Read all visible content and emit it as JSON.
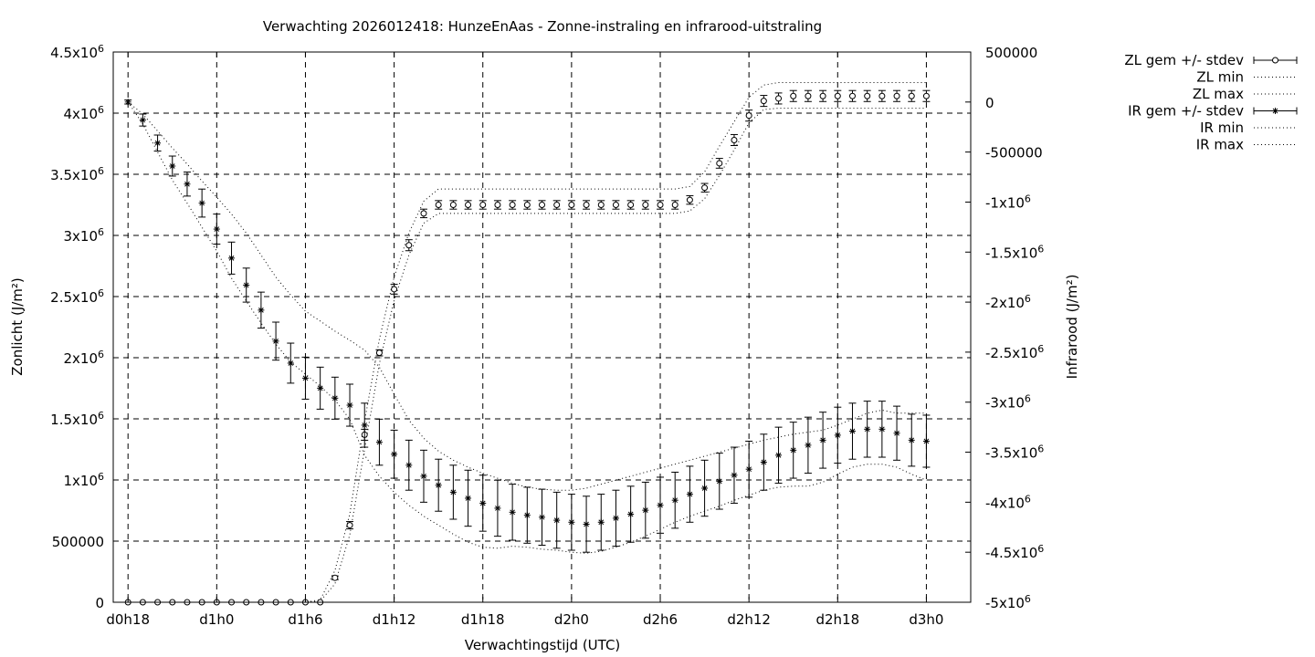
{
  "chart_data": {
    "type": "line",
    "title": "Verwachting 2026012418: HunzeEnAas - Zonne-instraling en infrarood-uitstraling",
    "xlabel": "Verwachtingstijd (UTC)",
    "ylabel_left": "Zonlicht (J/m²)",
    "ylabel_right": "Infrarood (J/m²)",
    "x_range_hours": [
      -1,
      57
    ],
    "ylim_left": [
      0,
      4500000
    ],
    "ylim_right": [
      -5000000,
      500000
    ],
    "grid": true,
    "legend_position": "outside-right",
    "x_ticks": [
      {
        "h": 0,
        "label": "d0h18"
      },
      {
        "h": 6,
        "label": "d1h0"
      },
      {
        "h": 12,
        "label": "d1h6"
      },
      {
        "h": 18,
        "label": "d1h12"
      },
      {
        "h": 24,
        "label": "d1h18"
      },
      {
        "h": 30,
        "label": "d2h0"
      },
      {
        "h": 36,
        "label": "d2h6"
      },
      {
        "h": 42,
        "label": "d2h12"
      },
      {
        "h": 48,
        "label": "d2h18"
      },
      {
        "h": 54,
        "label": "d3h0"
      }
    ],
    "y_ticks_left": [
      {
        "v": 4500000,
        "base": "4.5x10",
        "exp": "6"
      },
      {
        "v": 4000000,
        "base": "4x10",
        "exp": "6"
      },
      {
        "v": 3500000,
        "base": "3.5x10",
        "exp": "6"
      },
      {
        "v": 3000000,
        "base": "3x10",
        "exp": "6"
      },
      {
        "v": 2500000,
        "base": "2.5x10",
        "exp": "6"
      },
      {
        "v": 2000000,
        "base": "2x10",
        "exp": "6"
      },
      {
        "v": 1500000,
        "base": "1.5x10",
        "exp": "6"
      },
      {
        "v": 1000000,
        "base": "1x10",
        "exp": "6"
      },
      {
        "v": 500000,
        "base": "500000",
        "exp": ""
      },
      {
        "v": 0,
        "base": "0",
        "exp": ""
      }
    ],
    "y_ticks_right": [
      {
        "v": 500000,
        "base": "500000",
        "exp": ""
      },
      {
        "v": 0,
        "base": "0",
        "exp": ""
      },
      {
        "v": -500000,
        "base": "-500000",
        "exp": ""
      },
      {
        "v": -1000000,
        "base": "-1x10",
        "exp": "6"
      },
      {
        "v": -1500000,
        "base": "-1.5x10",
        "exp": "6"
      },
      {
        "v": -2000000,
        "base": "-2x10",
        "exp": "6"
      },
      {
        "v": -2500000,
        "base": "-2.5x10",
        "exp": "6"
      },
      {
        "v": -3000000,
        "base": "-3x10",
        "exp": "6"
      },
      {
        "v": -3500000,
        "base": "-3.5x10",
        "exp": "6"
      },
      {
        "v": -4000000,
        "base": "-4x10",
        "exp": "6"
      },
      {
        "v": -4500000,
        "base": "-4.5x10",
        "exp": "6"
      },
      {
        "v": -5000000,
        "base": "-5x10",
        "exp": "6"
      }
    ],
    "x_hours": [
      0,
      1,
      2,
      3,
      4,
      5,
      6,
      7,
      8,
      9,
      10,
      11,
      12,
      13,
      14,
      15,
      16,
      17,
      18,
      19,
      20,
      21,
      22,
      23,
      24,
      25,
      26,
      27,
      28,
      29,
      30,
      31,
      32,
      33,
      34,
      35,
      36,
      37,
      38,
      39,
      40,
      41,
      42,
      43,
      44,
      45,
      46,
      47,
      48,
      49,
      50,
      51,
      52,
      53,
      54
    ],
    "series": [
      {
        "name": "ZL gem +/- stdev",
        "axis": "left",
        "marker": "circle",
        "mean": [
          0,
          0,
          0,
          0,
          0,
          0,
          0,
          0,
          0,
          0,
          0,
          0,
          0,
          0,
          200000,
          630000,
          1370000,
          2040000,
          2560000,
          2920000,
          3180000,
          3250000,
          3250000,
          3250000,
          3250000,
          3250000,
          3250000,
          3250000,
          3250000,
          3250000,
          3250000,
          3250000,
          3250000,
          3250000,
          3250000,
          3250000,
          3250000,
          3250000,
          3290000,
          3390000,
          3590000,
          3780000,
          3980000,
          4100000,
          4120000,
          4140000,
          4140000,
          4140000,
          4140000,
          4140000,
          4140000,
          4140000,
          4140000,
          4140000,
          4140000
        ],
        "stdev": [
          0,
          0,
          0,
          0,
          0,
          0,
          0,
          0,
          0,
          0,
          0,
          0,
          0,
          0,
          15000,
          30000,
          45000,
          25000,
          40000,
          45000,
          35000,
          35000,
          35000,
          35000,
          35000,
          35000,
          35000,
          35000,
          35000,
          35000,
          35000,
          35000,
          35000,
          35000,
          35000,
          35000,
          35000,
          35000,
          35000,
          35000,
          40000,
          45000,
          45000,
          45000,
          45000,
          45000,
          45000,
          45000,
          45000,
          45000,
          45000,
          45000,
          45000,
          45000,
          45000
        ]
      },
      {
        "name": "ZL min",
        "axis": "left",
        "style": "dotted",
        "values": [
          0,
          0,
          0,
          0,
          0,
          0,
          0,
          0,
          0,
          0,
          0,
          0,
          0,
          10000,
          150000,
          550000,
          1250000,
          1950000,
          2470000,
          2840000,
          3100000,
          3180000,
          3180000,
          3180000,
          3180000,
          3180000,
          3180000,
          3180000,
          3180000,
          3180000,
          3180000,
          3180000,
          3180000,
          3180000,
          3180000,
          3180000,
          3180000,
          3180000,
          3200000,
          3300000,
          3490000,
          3700000,
          3920000,
          4030000,
          4040000,
          4040000,
          4040000,
          4040000,
          4040000,
          4040000,
          4040000,
          4040000,
          4040000,
          4040000,
          4040000
        ]
      },
      {
        "name": "ZL max",
        "axis": "left",
        "style": "dotted",
        "values": [
          0,
          0,
          0,
          0,
          0,
          0,
          0,
          0,
          0,
          0,
          0,
          0,
          0,
          20000,
          260000,
          720000,
          1480000,
          2150000,
          2660000,
          3020000,
          3280000,
          3380000,
          3380000,
          3380000,
          3380000,
          3380000,
          3380000,
          3380000,
          3380000,
          3380000,
          3380000,
          3380000,
          3380000,
          3380000,
          3380000,
          3380000,
          3380000,
          3380000,
          3400000,
          3520000,
          3730000,
          3930000,
          4130000,
          4230000,
          4250000,
          4250000,
          4250000,
          4250000,
          4250000,
          4250000,
          4250000,
          4250000,
          4250000,
          4250000,
          4250000
        ]
      },
      {
        "name": "IR gem +/- stdev",
        "axis": "right",
        "marker": "star",
        "mean": [
          0,
          -180000,
          -410000,
          -640000,
          -820000,
          -1010000,
          -1270000,
          -1560000,
          -1830000,
          -2080000,
          -2390000,
          -2610000,
          -2760000,
          -2860000,
          -2960000,
          -3030000,
          -3230000,
          -3400000,
          -3520000,
          -3630000,
          -3740000,
          -3830000,
          -3900000,
          -3960000,
          -4010000,
          -4060000,
          -4100000,
          -4130000,
          -4150000,
          -4180000,
          -4200000,
          -4220000,
          -4200000,
          -4160000,
          -4120000,
          -4080000,
          -4030000,
          -3980000,
          -3920000,
          -3860000,
          -3790000,
          -3730000,
          -3670000,
          -3600000,
          -3530000,
          -3480000,
          -3430000,
          -3380000,
          -3330000,
          -3290000,
          -3270000,
          -3270000,
          -3310000,
          -3380000,
          -3390000
        ],
        "stdev": [
          20000,
          60000,
          80000,
          100000,
          120000,
          140000,
          150000,
          160000,
          170000,
          180000,
          190000,
          200000,
          210000,
          210000,
          210000,
          210000,
          220000,
          230000,
          240000,
          250000,
          260000,
          260000,
          270000,
          280000,
          280000,
          280000,
          280000,
          280000,
          280000,
          280000,
          280000,
          280000,
          280000,
          280000,
          280000,
          280000,
          280000,
          280000,
          280000,
          280000,
          280000,
          280000,
          280000,
          280000,
          280000,
          280000,
          280000,
          280000,
          280000,
          280000,
          280000,
          280000,
          270000,
          260000,
          260000
        ]
      },
      {
        "name": "IR min",
        "axis": "right",
        "style": "dotted",
        "values": [
          0,
          -220000,
          -500000,
          -780000,
          -1010000,
          -1250000,
          -1490000,
          -1760000,
          -1990000,
          -2210000,
          -2420000,
          -2600000,
          -2720000,
          -2840000,
          -2980000,
          -3170000,
          -3530000,
          -3740000,
          -3900000,
          -4030000,
          -4140000,
          -4230000,
          -4320000,
          -4400000,
          -4450000,
          -4460000,
          -4440000,
          -4450000,
          -4470000,
          -4480000,
          -4500000,
          -4510000,
          -4490000,
          -4450000,
          -4400000,
          -4340000,
          -4270000,
          -4200000,
          -4140000,
          -4090000,
          -4040000,
          -3980000,
          -3930000,
          -3880000,
          -3850000,
          -3840000,
          -3840000,
          -3800000,
          -3720000,
          -3650000,
          -3620000,
          -3620000,
          -3650000,
          -3720000,
          -3780000
        ]
      },
      {
        "name": "IR max",
        "axis": "right",
        "style": "dotted",
        "values": [
          0,
          -120000,
          -290000,
          -460000,
          -620000,
          -790000,
          -950000,
          -1120000,
          -1310000,
          -1530000,
          -1750000,
          -1930000,
          -2090000,
          -2190000,
          -2290000,
          -2380000,
          -2480000,
          -2650000,
          -2920000,
          -3180000,
          -3360000,
          -3490000,
          -3580000,
          -3650000,
          -3710000,
          -3760000,
          -3810000,
          -3850000,
          -3870000,
          -3880000,
          -3880000,
          -3860000,
          -3820000,
          -3780000,
          -3740000,
          -3700000,
          -3660000,
          -3620000,
          -3580000,
          -3540000,
          -3500000,
          -3460000,
          -3420000,
          -3380000,
          -3350000,
          -3320000,
          -3300000,
          -3280000,
          -3230000,
          -3170000,
          -3110000,
          -3080000,
          -3110000,
          -3110000,
          -3110000
        ]
      }
    ]
  }
}
